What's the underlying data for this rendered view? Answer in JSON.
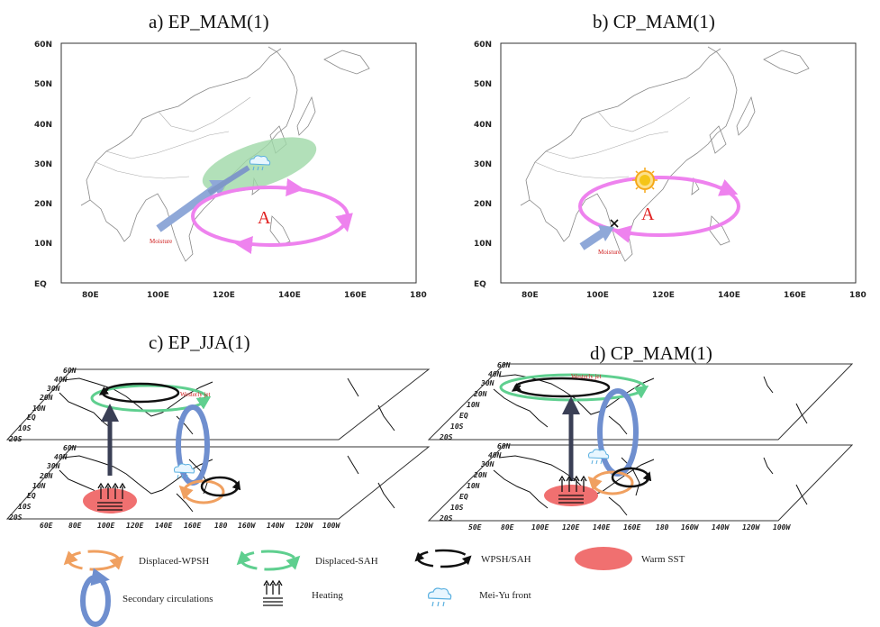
{
  "panels": {
    "a": {
      "title": "a) EP_MAM(1)",
      "anomaly_label": "A",
      "moisture_label": "Moisture"
    },
    "b": {
      "title": "b) CP_MAM(1)",
      "anomaly_label": "A",
      "moisture_label": "Moisture"
    },
    "c": {
      "title": "c) EP_JJA(1)",
      "jet_label": "Westerly jet"
    },
    "d": {
      "title": "d) CP_MAM(1)",
      "jet_label": "Westerly jet"
    }
  },
  "map_axes": {
    "y_ticks": [
      "60N",
      "50N",
      "40N",
      "30N",
      "20N",
      "10N",
      "EQ"
    ],
    "x_ticks": [
      "80E",
      "100E",
      "120E",
      "140E",
      "160E",
      "180"
    ]
  },
  "layer_axes": {
    "c_upper_y": [
      "60N",
      "40N",
      "30N",
      "20N",
      "10N",
      "EQ",
      "10S",
      "20S"
    ],
    "c_lower_y": [
      "60N",
      "40N",
      "30N",
      "20N",
      "10N",
      "EQ",
      "10S",
      "20S"
    ],
    "c_x": [
      "60E",
      "80E",
      "100E",
      "120E",
      "140E",
      "160E",
      "180",
      "160W",
      "140W",
      "120W",
      "100W"
    ],
    "d_upper_y": [
      "60N",
      "40N",
      "30N",
      "20N",
      "10N",
      "EQ",
      "10S",
      "20S"
    ],
    "d_lower_y": [
      "60N",
      "40N",
      "30N",
      "20N",
      "10N",
      "EQ",
      "10S",
      "20S"
    ],
    "d_x": [
      "50E",
      "80E",
      "100E",
      "120E",
      "140E",
      "160E",
      "180",
      "160W",
      "140W",
      "120W",
      "100W"
    ]
  },
  "legend": {
    "displaced_wpsh": "Displaced-WPSH",
    "displaced_sah": "Displaced-SAH",
    "wpsh_sah": "WPSH/SAH",
    "warm_sst": "Warm SST",
    "secondary_circulations": "Secondary circulations",
    "heating": "Heating",
    "mei_yu_front": "Mei-Yu front"
  },
  "colors": {
    "anticyclone": "#ee82ee",
    "moisture_arrow": "#8fa8d8",
    "mei_yu_zone": "#9fd8a8",
    "displaced_wpsh": "#f0a060",
    "displaced_sah": "#5fcf8f",
    "wpsh_sah": "#111111",
    "warm_sst": "#f07070",
    "secondary_circulation": "#6f8fcf",
    "sun": "#f5c518",
    "anomaly_text": "#e02020"
  }
}
